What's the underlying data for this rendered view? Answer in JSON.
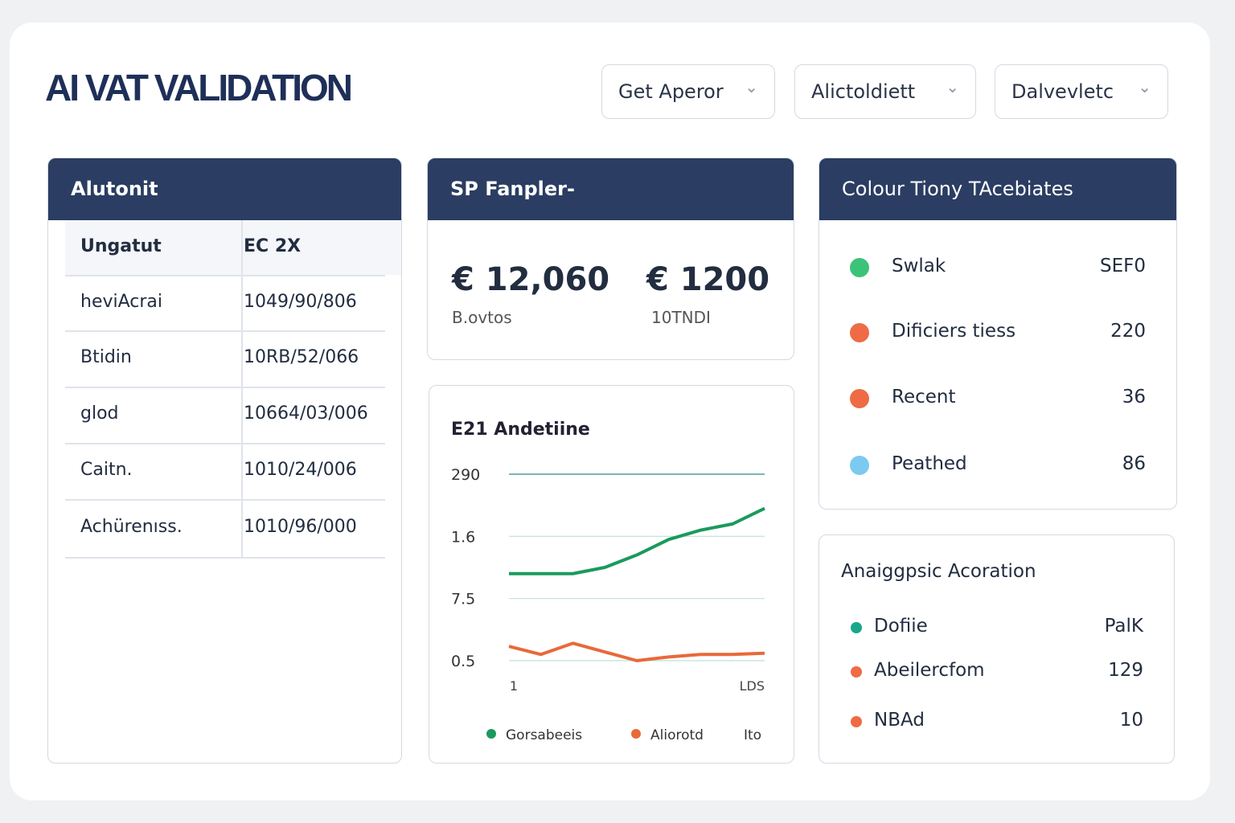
{
  "header": {
    "title": "AI VAT VALIDATION",
    "dropdowns": [
      "Get Aperor",
      "Alictoldiett",
      "Dalvevletc"
    ]
  },
  "table_panel": {
    "title": "Alutonit",
    "rows": [
      [
        "Ungatut",
        "EC 2X"
      ],
      [
        "heviAcrai",
        "1049/90/806"
      ],
      [
        "Btidin",
        "10RB/52/066"
      ],
      [
        "glod",
        "10664/03/006"
      ],
      [
        "Caitn.",
        "1010/24/006"
      ],
      [
        "Achürenıss.",
        "1010/96/000"
      ]
    ]
  },
  "summary_panel": {
    "title": "SP Fanpler-",
    "stats": [
      {
        "value": "€ 12,060",
        "label": "B.ovtos"
      },
      {
        "value": "€ 1200",
        "label": "10TNDI"
      }
    ]
  },
  "chart_data": {
    "type": "line",
    "title": "E21 Andetiine",
    "x": [
      0,
      1,
      2,
      3,
      4,
      5,
      6,
      7,
      8
    ],
    "xlim": [
      0,
      8
    ],
    "x_labels": [
      "1",
      "LDS"
    ],
    "ylim": [
      0,
      3
    ],
    "yticks": [
      {
        "value": 3,
        "label": "290"
      },
      {
        "value": 2,
        "label": "1.6"
      },
      {
        "value": 1,
        "label": "7.5"
      },
      {
        "value": 0,
        "label": "0.5"
      }
    ],
    "grid": true,
    "series": [
      {
        "name": "Gorsabeeis",
        "color": "#1a9a5c",
        "values": [
          1.4,
          1.4,
          1.4,
          1.5,
          1.7,
          1.95,
          2.1,
          2.2,
          2.45
        ]
      },
      {
        "name": "Aliorotd",
        "color": "#e8693a",
        "values": [
          0.23,
          0.1,
          0.28,
          0.14,
          0.0,
          0.06,
          0.1,
          0.1,
          0.12
        ]
      }
    ],
    "legend_extra": "Ito"
  },
  "status_panel": {
    "title": "Colour Tiony TAcebiates",
    "rows": [
      {
        "color": "#3cc37a",
        "label": "Swlak",
        "value": "SEF0"
      },
      {
        "color": "#ee6b45",
        "label": "Dificiers tiess",
        "value": 220
      },
      {
        "color": "#ee6b45",
        "label": "Recent",
        "value": 36
      },
      {
        "color": "#7ccaf0",
        "label": "Peathed",
        "value": 86
      }
    ]
  },
  "allocation_panel": {
    "title": "Anaiggpsic Acoration",
    "rows": [
      {
        "color": "#16a88a",
        "label": "Dofiie",
        "value": "PalK"
      },
      {
        "color": "#ee6b45",
        "label": "Abeilercfom",
        "value": 129
      },
      {
        "color": "#ee6b45",
        "label": "NBAd",
        "value": 10
      }
    ]
  }
}
